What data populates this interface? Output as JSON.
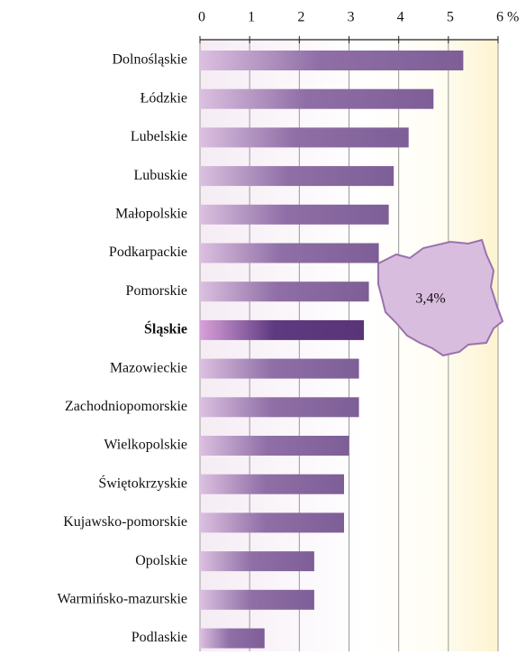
{
  "chart_data": {
    "type": "bar",
    "orientation": "horizontal",
    "categories": [
      "Dolnośląskie",
      "Łódzkie",
      "Lubelskie",
      "Lubuskie",
      "Małopolskie",
      "Podkarpackie",
      "Pomorskie",
      "Śląskie",
      "Mazowieckie",
      "Zachodniopomorskie",
      "Wielkopolskie",
      "Świętokrzyskie",
      "Kujawsko-pomorskie",
      "Opolskie",
      "Warmińsko-mazurskie",
      "Podlaskie"
    ],
    "values": [
      5.3,
      4.7,
      4.2,
      3.9,
      3.8,
      3.6,
      3.4,
      3.3,
      3.2,
      3.2,
      3.0,
      2.9,
      2.9,
      2.3,
      2.3,
      1.3
    ],
    "color": "#7e5e96",
    "highlight": 7,
    "highlight_color": "#5a3478",
    "xlim": [
      0,
      6
    ],
    "xticks": [
      0,
      1,
      2,
      3,
      4,
      5,
      {
        "value": 6,
        "label": "6 %"
      }
    ],
    "grid": true,
    "annotation": "3,4%"
  }
}
